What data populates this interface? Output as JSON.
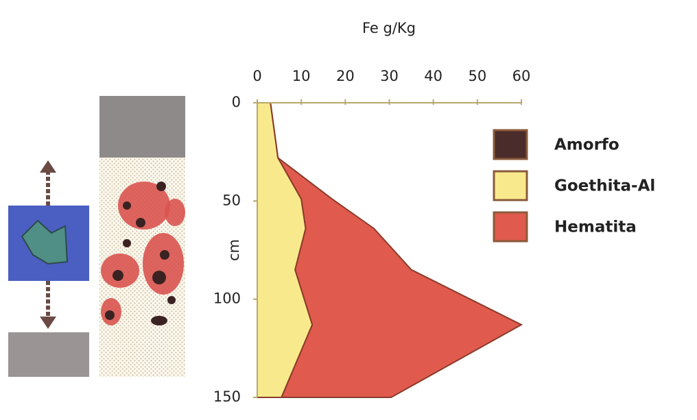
{
  "chart_data": {
    "type": "depth-profile",
    "x_label": "Fe g/Kg",
    "y_label": "cm",
    "xlim": [
      0,
      60
    ],
    "xticks": [
      0,
      10,
      20,
      30,
      40,
      50,
      60
    ],
    "ylim": [
      0,
      150
    ],
    "yticks": [
      0,
      50,
      100,
      150
    ],
    "depth": [
      0,
      28,
      49,
      64,
      85,
      113,
      150
    ],
    "series": [
      {
        "name": "Goethita-Al",
        "color": "#f8ea8c",
        "values": [
          3,
          4.7,
          10,
          11,
          8.6,
          12.5,
          5.5
        ]
      },
      {
        "name": "Hematita",
        "color": "#e05a4e",
        "values": [
          0,
          0,
          7,
          15.5,
          26.4,
          47.5,
          24.9
        ]
      }
    ],
    "legend": [
      {
        "name": "Amorfo",
        "color": "#4a2c2a"
      },
      {
        "name": "Goethita-Al",
        "color": "#f8ea8c"
      },
      {
        "name": "Hematita",
        "color": "#e05a4e"
      }
    ]
  }
}
